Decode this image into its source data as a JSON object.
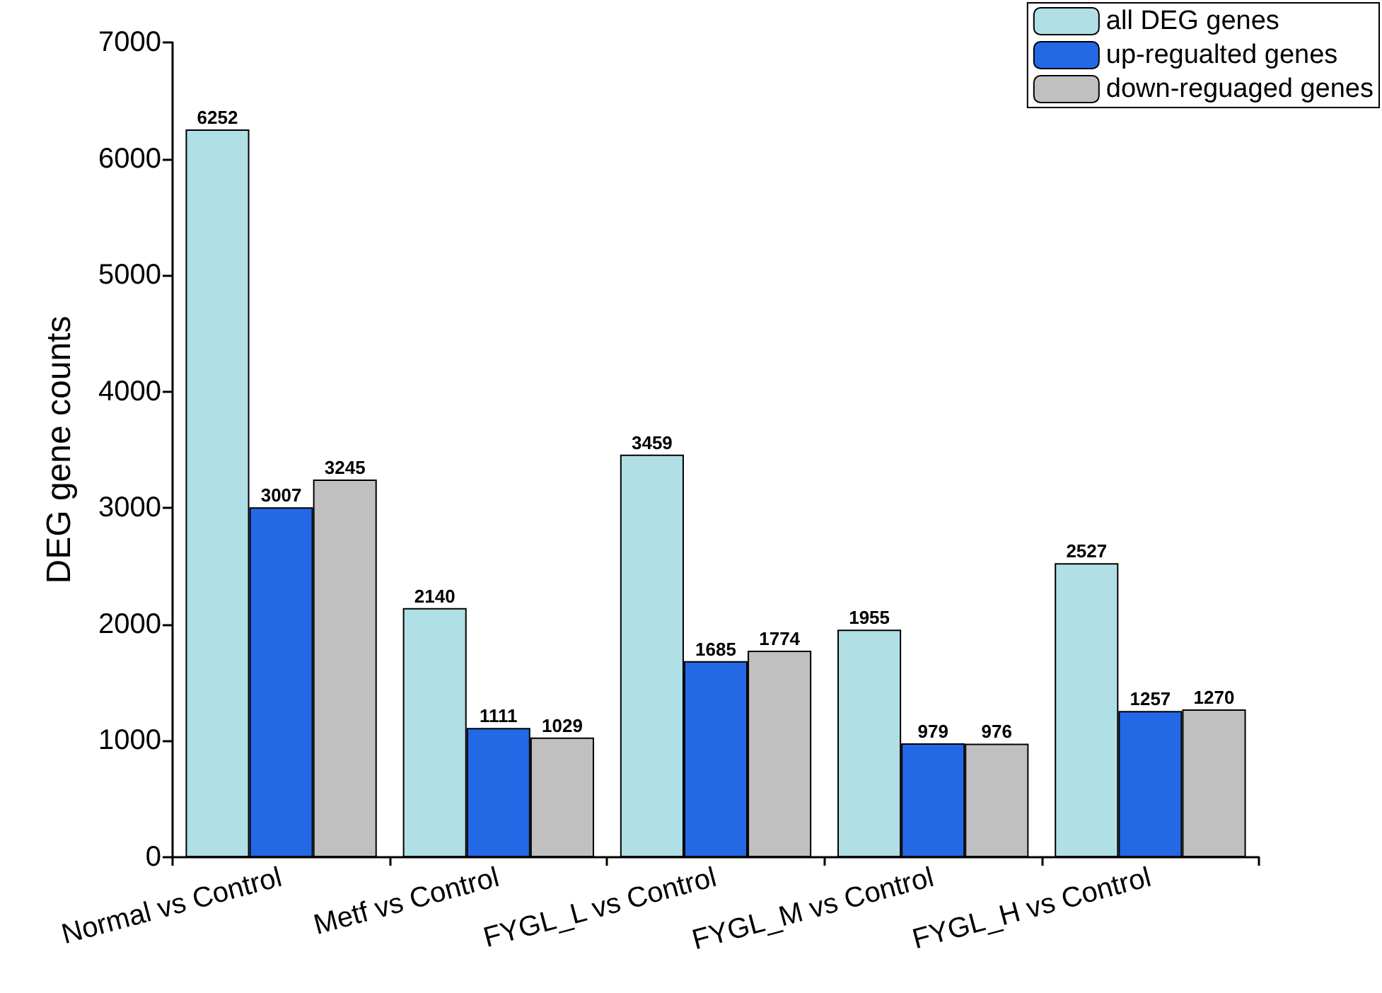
{
  "chart_data": {
    "type": "bar",
    "ylabel": "DEG gene counts",
    "categories": [
      "Normal vs Control",
      "Metf vs Control",
      "FYGL_L vs Control",
      "FYGL_M vs Control",
      "FYGL_H vs Control"
    ],
    "series": [
      {
        "name": "all DEG genes",
        "color": "#b0e0e6",
        "values": [
          6252,
          2140,
          3459,
          1955,
          2527
        ]
      },
      {
        "name": "up-regualted genes",
        "color": "#2369e6",
        "values": [
          3007,
          1111,
          1685,
          979,
          1257
        ]
      },
      {
        "name": "down-reguaged genes",
        "color": "#c0c0c0",
        "values": [
          3245,
          1029,
          1774,
          976,
          1270
        ]
      }
    ],
    "ylim": [
      0,
      7000
    ],
    "yticks": [
      0,
      1000,
      2000,
      3000,
      4000,
      5000,
      6000,
      7000
    ],
    "data_labels": true,
    "legend": "top right",
    "grid": false
  }
}
